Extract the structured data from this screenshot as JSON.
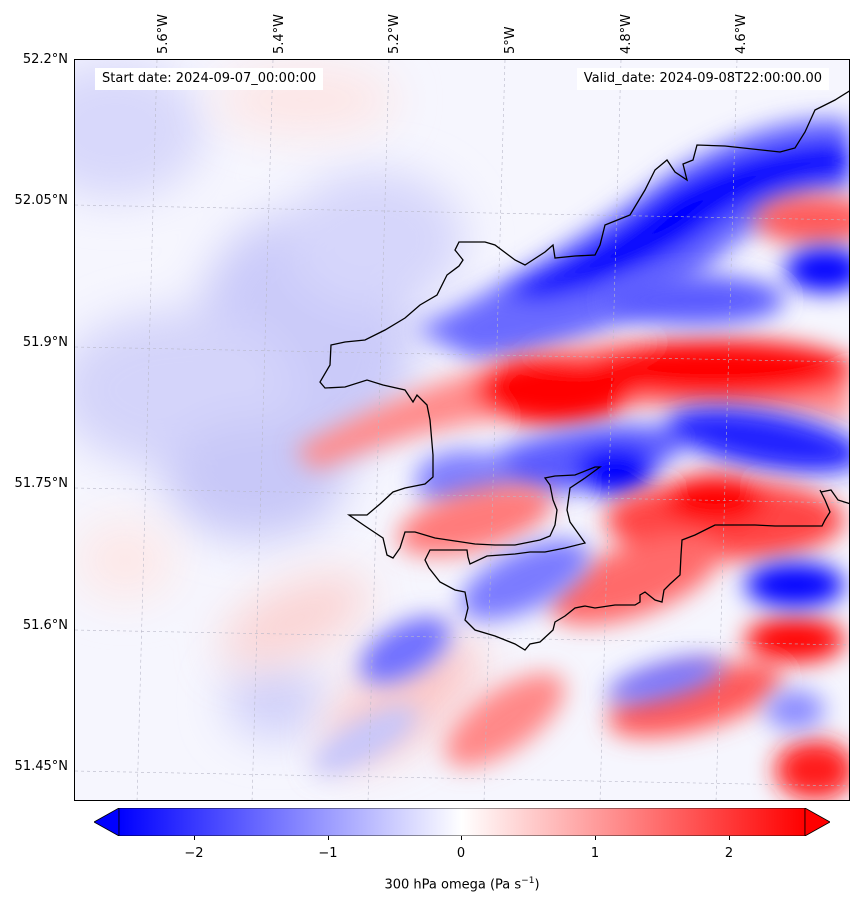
{
  "map": {
    "start_date": "Start date: 2024-09-07_00:00:00",
    "valid_date": "Valid_date: 2024-09-08T22:00:00.00",
    "lon_labels": [
      "5.6°W",
      "5.4°W",
      "5.2°W",
      "5°W",
      "4.8°W",
      "4.6°W"
    ],
    "lat_labels": [
      "52.2°N",
      "52.05°N",
      "51.9°N",
      "51.75°N",
      "51.6°N",
      "51.45°N"
    ],
    "variable": "300 hPa omega",
    "units": "(Pa s",
    "units_exp": "−1",
    "units_close": ")"
  },
  "colorbar": {
    "min": -2.5,
    "max": 2.5,
    "ticks": [
      "−2",
      "−1",
      "0",
      "1",
      "2"
    ],
    "colors": {
      "negative": "#0000ff",
      "neutral": "#ffffff",
      "positive": "#ff0000"
    }
  }
}
